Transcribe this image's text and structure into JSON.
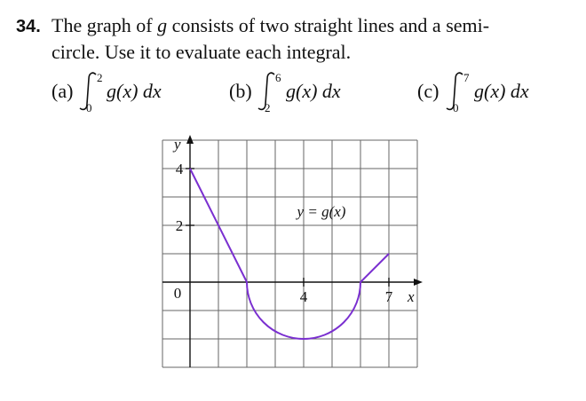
{
  "problem": {
    "number": "34.",
    "line1": [
      "The graph of ",
      "g",
      " consists of two straight lines and a semi-"
    ],
    "line2": "circle. Use it to evaluate each integral."
  },
  "parts": [
    {
      "label": "(a)",
      "lower": "0",
      "upper": "2",
      "integrand": "g(x) dx"
    },
    {
      "label": "(b)",
      "lower": "2",
      "upper": "6",
      "integrand": "g(x) dx"
    },
    {
      "label": "(c)",
      "lower": "0",
      "upper": "7",
      "integrand": "g(x) dx"
    }
  ],
  "graph": {
    "y_label": "y",
    "x_label": "x",
    "y_ticks": [
      "4",
      "2"
    ],
    "origin": "0",
    "x_ticks": [
      "4",
      "7"
    ],
    "curve_label": "y = g(x)"
  }
}
